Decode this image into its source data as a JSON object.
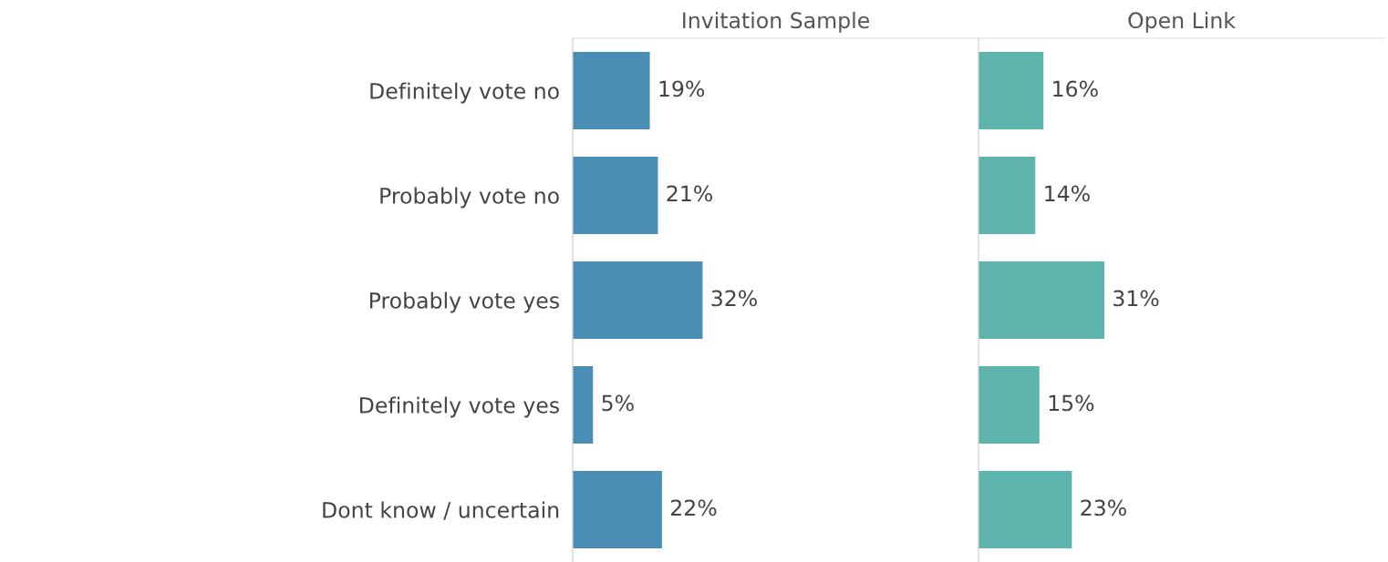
{
  "chart_data": [
    {
      "type": "bar",
      "orientation": "horizontal",
      "title": "Invitation Sample",
      "categories": [
        "Definitely vote no",
        "Probably vote no",
        "Probably vote yes",
        "Definitely vote yes",
        "Dont know / uncertain"
      ],
      "values": [
        19,
        21,
        32,
        5,
        22
      ],
      "value_labels": [
        "19%",
        "21%",
        "32%",
        "5%",
        "22%"
      ],
      "color": "#4a8db5",
      "xlim": [
        0,
        100
      ],
      "tick_labels": "y",
      "grid": false,
      "legend": false
    },
    {
      "type": "bar",
      "orientation": "horizontal",
      "title": "Open Link",
      "categories": [
        null,
        null,
        null,
        null,
        null
      ],
      "values": [
        16,
        14,
        31,
        15,
        23
      ],
      "value_labels": [
        "16%",
        "14%",
        "31%",
        "15%",
        "23%"
      ],
      "color": "#5db5ad",
      "xlim": [
        0,
        100
      ],
      "tick_labels": false,
      "grid": false,
      "legend": false
    }
  ]
}
